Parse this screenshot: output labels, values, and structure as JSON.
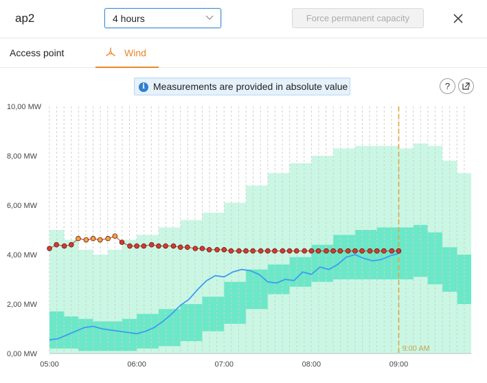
{
  "header": {
    "title": "ap2",
    "period_select": "4 hours",
    "force_button": "Force permanent capacity"
  },
  "tabs": [
    {
      "label": "Access point"
    },
    {
      "label": "Wind"
    }
  ],
  "banner": {
    "text": "Measurements are provided in absolute value"
  },
  "buttons": {
    "help": "?"
  },
  "colors": {
    "accent": "#e8862b",
    "link": "#2f7fd0",
    "outer_band": "#c9f7e4",
    "inner_band": "#6be8c7",
    "measured_line": "#3b9cf0",
    "forecast_point": "#d63a2f",
    "forecast_point_orange": "#f2a33a",
    "now_line": "#e8a23a"
  },
  "chart_data": {
    "type": "line",
    "x_ticks": [
      "05:00",
      "06:00",
      "07:00",
      "08:00",
      "09:00"
    ],
    "y_ticks": [
      "0,00 MW",
      "2,00 MW",
      "4,00 MW",
      "6,00 MW",
      "8,00 MW",
      "10,00 MW"
    ],
    "ylim": [
      0,
      10
    ],
    "xlim_hours": [
      5.0,
      9.83
    ],
    "now_marker": {
      "hour": 9.0,
      "label": "9:00 AM"
    },
    "grid": "vertical dashed every 5 minutes",
    "outer_band": {
      "x": [
        5.0,
        5.17,
        5.33,
        5.5,
        5.67,
        5.83,
        6.0,
        6.25,
        6.5,
        6.75,
        7.0,
        7.25,
        7.5,
        7.75,
        8.0,
        8.25,
        8.5,
        8.75,
        9.0,
        9.17,
        9.33,
        9.5,
        9.67,
        9.83
      ],
      "upper": [
        5.0,
        4.6,
        4.2,
        4.0,
        4.2,
        4.6,
        4.8,
        5.1,
        5.4,
        5.7,
        6.1,
        6.8,
        7.3,
        7.7,
        8.0,
        8.3,
        8.4,
        8.4,
        8.3,
        8.5,
        8.4,
        7.8,
        7.3,
        6.7
      ],
      "lower": [
        0,
        0,
        0,
        0,
        0,
        0,
        0,
        0,
        0,
        0,
        0,
        0,
        0,
        0,
        0,
        0,
        0,
        0,
        0,
        0,
        0,
        0,
        0,
        0
      ]
    },
    "inner_band": {
      "x": [
        5.0,
        5.17,
        5.33,
        5.5,
        5.67,
        5.83,
        6.0,
        6.25,
        6.5,
        6.75,
        7.0,
        7.25,
        7.5,
        7.75,
        8.0,
        8.25,
        8.5,
        8.75,
        9.0,
        9.17,
        9.33,
        9.5,
        9.67,
        9.83
      ],
      "upper": [
        1.7,
        1.5,
        1.4,
        1.3,
        1.3,
        1.4,
        1.6,
        1.8,
        2.0,
        2.3,
        2.9,
        3.4,
        3.6,
        3.9,
        4.4,
        4.8,
        5.0,
        5.1,
        5.1,
        5.2,
        4.9,
        4.3,
        4.0,
        3.6
      ],
      "lower": [
        0.2,
        0.2,
        0.1,
        0.1,
        0.1,
        0.1,
        0.2,
        0.3,
        0.5,
        0.9,
        1.2,
        1.8,
        2.4,
        2.7,
        2.9,
        3.0,
        3.0,
        3.0,
        3.0,
        3.1,
        2.8,
        2.5,
        2.0,
        1.5
      ]
    },
    "series": [
      {
        "kind": "measured",
        "x": [
          5.0,
          5.1,
          5.2,
          5.3,
          5.4,
          5.5,
          5.6,
          5.7,
          5.8,
          5.9,
          6.0,
          6.1,
          6.2,
          6.3,
          6.4,
          6.5,
          6.6,
          6.7,
          6.8,
          6.9,
          7.0,
          7.1,
          7.2,
          7.3,
          7.4,
          7.5,
          7.6,
          7.7,
          7.8,
          7.9,
          8.0,
          8.1,
          8.2,
          8.3,
          8.4,
          8.5,
          8.6,
          8.7,
          8.8,
          8.9,
          9.0
        ],
        "y": [
          0.55,
          0.6,
          0.75,
          0.9,
          1.05,
          1.1,
          1.0,
          0.95,
          0.9,
          0.85,
          0.8,
          0.9,
          1.05,
          1.3,
          1.6,
          1.95,
          2.2,
          2.6,
          2.95,
          3.15,
          3.1,
          3.3,
          3.4,
          3.35,
          3.2,
          2.9,
          2.85,
          3.0,
          2.95,
          3.3,
          3.2,
          3.5,
          3.4,
          3.6,
          3.9,
          4.0,
          3.85,
          3.75,
          3.8,
          3.95,
          4.05
        ]
      },
      {
        "kind": "forecast",
        "x": [
          5.0,
          5.08,
          5.17,
          5.25,
          5.33,
          5.42,
          5.5,
          5.58,
          5.67,
          5.75,
          5.83,
          5.92,
          6.0,
          6.08,
          6.17,
          6.25,
          6.33,
          6.42,
          6.5,
          6.58,
          6.67,
          6.75,
          6.83,
          6.92,
          7.0,
          7.08,
          7.17,
          7.25,
          7.33,
          7.42,
          7.5,
          7.58,
          7.67,
          7.75,
          7.83,
          7.92,
          8.0,
          8.08,
          8.17,
          8.25,
          8.33,
          8.42,
          8.5,
          8.58,
          8.67,
          8.75,
          8.83,
          8.92,
          9.0
        ],
        "y": [
          4.25,
          4.4,
          4.35,
          4.4,
          4.65,
          4.6,
          4.65,
          4.6,
          4.65,
          4.75,
          4.5,
          4.35,
          4.35,
          4.35,
          4.4,
          4.35,
          4.35,
          4.35,
          4.3,
          4.3,
          4.25,
          4.25,
          4.2,
          4.2,
          4.2,
          4.15,
          4.15,
          4.15,
          4.15,
          4.15,
          4.15,
          4.15,
          4.15,
          4.15,
          4.15,
          4.15,
          4.15,
          4.15,
          4.15,
          4.15,
          4.15,
          4.15,
          4.15,
          4.15,
          4.15,
          4.15,
          4.15,
          4.15,
          4.15
        ],
        "orange_indices": [
          4,
          5,
          6,
          7,
          8,
          9
        ]
      }
    ]
  }
}
